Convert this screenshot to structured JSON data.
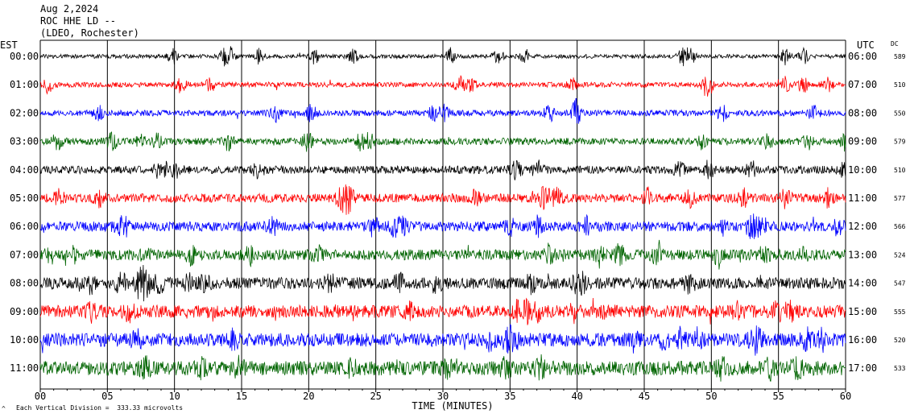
{
  "header": {
    "date": "Aug 2,2024",
    "station": "ROC HHE LD --",
    "location": "(LDEO, Rochester)",
    "left_tz": "EST",
    "right_tz": "UTC",
    "dc_label": "DC"
  },
  "footer": {
    "xlabel": "TIME (MINUTES)",
    "scale_note": "Each Vertical Division =  333.33 microvolts",
    "corner_mark": "^"
  },
  "colors": {
    "black": "#000000",
    "red": "#ff0000",
    "blue": "#0000ff",
    "green": "#006400"
  },
  "chart_data": {
    "type": "line",
    "title": "ROC HHE LD --",
    "xlabel": "TIME (MINUTES)",
    "xlim": [
      0,
      60
    ],
    "x_ticks": [
      "00",
      "05",
      "10",
      "15",
      "20",
      "25",
      "30",
      "35",
      "40",
      "45",
      "50",
      "55",
      "60"
    ],
    "grid": "vertical every 5 minutes",
    "rows": [
      {
        "est": "00:00",
        "utc": "06:00",
        "dc": "589",
        "color": "black"
      },
      {
        "est": "01:00",
        "utc": "07:00",
        "dc": "510",
        "color": "red"
      },
      {
        "est": "02:00",
        "utc": "08:00",
        "dc": "550",
        "color": "blue"
      },
      {
        "est": "03:00",
        "utc": "09:00",
        "dc": "579",
        "color": "green"
      },
      {
        "est": "04:00",
        "utc": "10:00",
        "dc": "510",
        "color": "black"
      },
      {
        "est": "05:00",
        "utc": "11:00",
        "dc": "577",
        "color": "red"
      },
      {
        "est": "06:00",
        "utc": "12:00",
        "dc": "566",
        "color": "blue"
      },
      {
        "est": "07:00",
        "utc": "13:00",
        "dc": "524",
        "color": "green"
      },
      {
        "est": "08:00",
        "utc": "14:00",
        "dc": "547",
        "color": "black"
      },
      {
        "est": "09:00",
        "utc": "15:00",
        "dc": "555",
        "color": "red"
      },
      {
        "est": "10:00",
        "utc": "16:00",
        "dc": "520",
        "color": "blue"
      },
      {
        "est": "11:00",
        "utc": "17:00",
        "dc": "533",
        "color": "green"
      }
    ]
  }
}
